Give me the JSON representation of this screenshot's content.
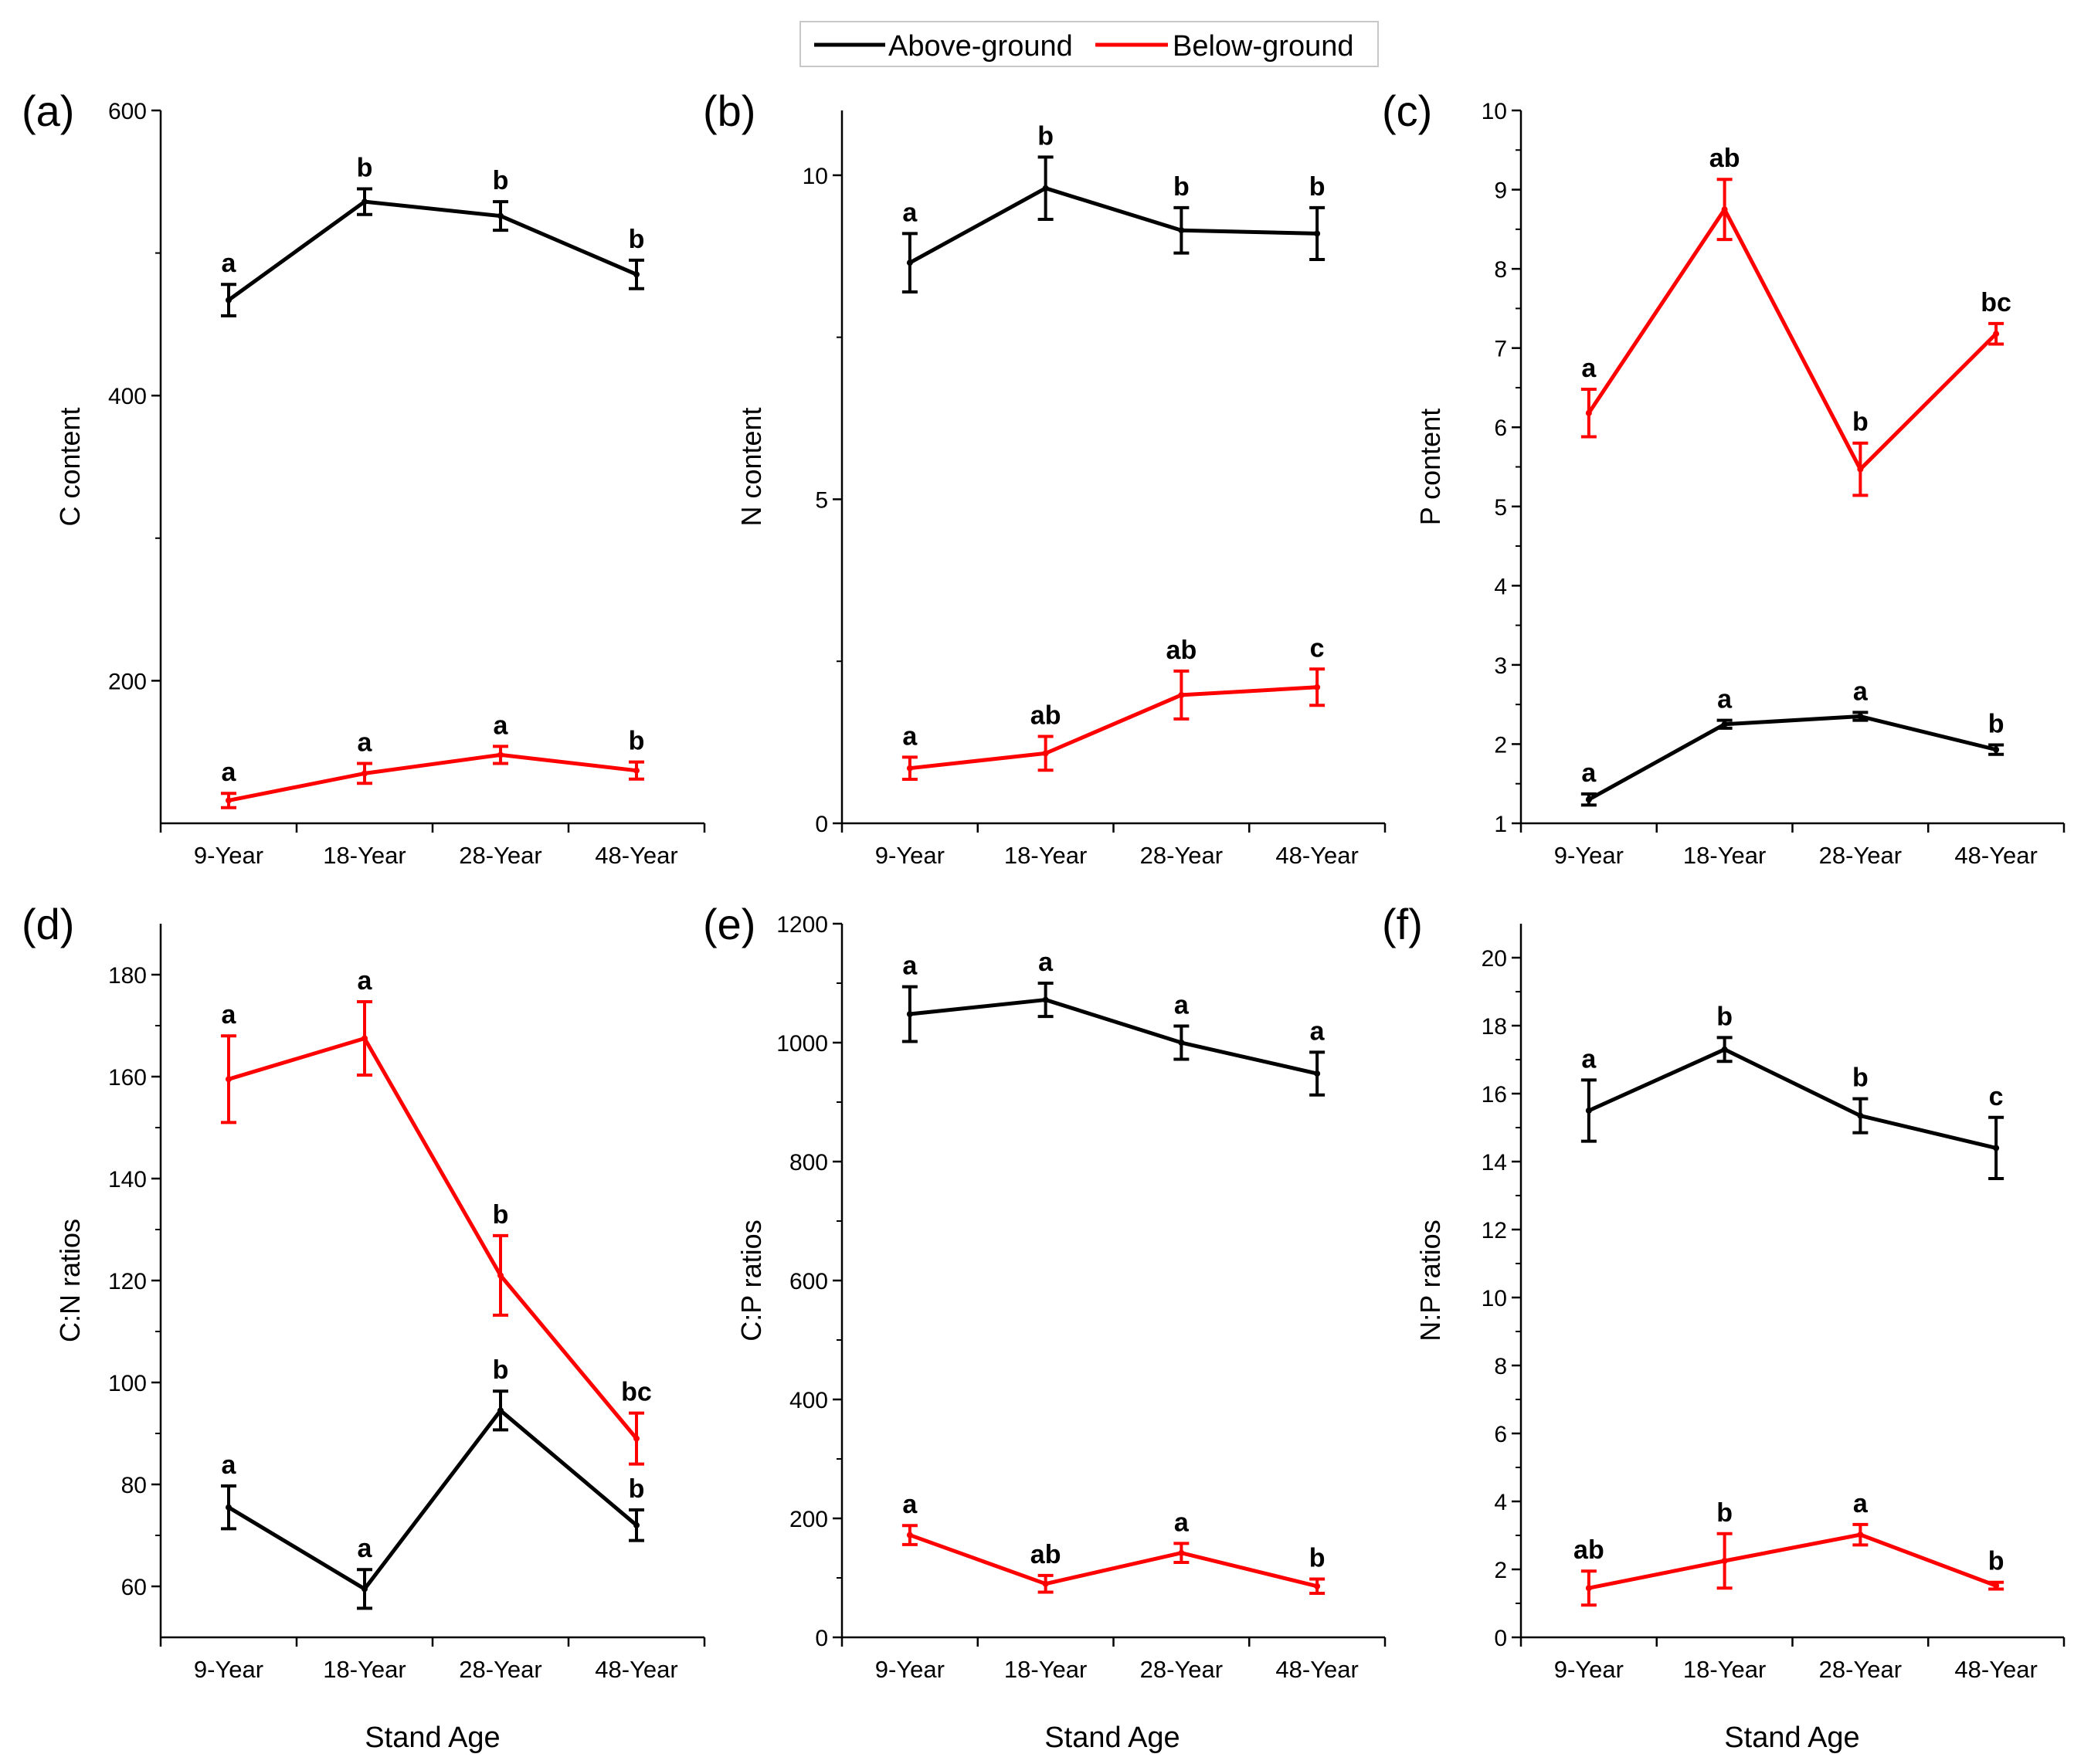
{
  "legend": {
    "above_label": "Above-ground",
    "below_label": "Below-ground",
    "above_color": "#000000",
    "below_color": "#ff0000"
  },
  "xlabel": "Stand Age",
  "chart_data": [
    {
      "type": "line",
      "panel": "(a)",
      "ylabel": "C content",
      "categories": [
        "9-Year",
        "18-Year",
        "28-Year",
        "48-Year"
      ],
      "ylim": [
        100,
        600
      ],
      "yticks": [
        200,
        400,
        600
      ],
      "ytick_labels": [
        "200",
        "400",
        "600"
      ],
      "series": [
        {
          "name": "Above-ground",
          "values": [
            467,
            536,
            526,
            485
          ],
          "errors": [
            11,
            9,
            10,
            10
          ],
          "labels": [
            "a",
            "b",
            "b",
            "b"
          ]
        },
        {
          "name": "Below-ground",
          "values": [
            116,
            135,
            148,
            137
          ],
          "errors": [
            5,
            7,
            6,
            6
          ],
          "labels": [
            "a",
            "a",
            "a",
            "b"
          ]
        }
      ]
    },
    {
      "type": "line",
      "panel": "(b)",
      "ylabel": "N content",
      "categories": [
        "9-Year",
        "18-Year",
        "28-Year",
        "48-Year"
      ],
      "ylim": [
        0,
        11
      ],
      "yticks": [
        0,
        5,
        10
      ],
      "ytick_labels": [
        "0",
        "5",
        "10"
      ],
      "series": [
        {
          "name": "Above-ground",
          "values": [
            8.65,
            9.8,
            9.15,
            9.1
          ],
          "errors": [
            0.45,
            0.48,
            0.35,
            0.4
          ],
          "labels": [
            "a",
            "b",
            "b",
            "b"
          ]
        },
        {
          "name": "Below-ground",
          "values": [
            0.85,
            1.08,
            1.98,
            2.1
          ],
          "errors": [
            0.17,
            0.26,
            0.37,
            0.28
          ],
          "labels": [
            "a",
            "ab",
            "ab",
            "c"
          ]
        }
      ]
    },
    {
      "type": "line",
      "panel": "(c)",
      "ylabel": "P content",
      "categories": [
        "9-Year",
        "18-Year",
        "28-Year",
        "48-Year"
      ],
      "ylim": [
        1,
        10
      ],
      "yticks": [
        1,
        2,
        3,
        4,
        5,
        6,
        7,
        8,
        9,
        10
      ],
      "ytick_labels": [
        "1",
        "2",
        "3",
        "4",
        "5",
        "6",
        "7",
        "8",
        "9",
        "10"
      ],
      "series": [
        {
          "name": "Above-ground",
          "values": [
            1.3,
            2.25,
            2.35,
            1.93
          ],
          "errors": [
            0.07,
            0.05,
            0.05,
            0.06
          ],
          "labels": [
            "a",
            "a",
            "a",
            "b"
          ]
        },
        {
          "name": "Below-ground",
          "values": [
            6.18,
            8.75,
            5.47,
            7.18
          ],
          "errors": [
            0.3,
            0.38,
            0.33,
            0.13
          ],
          "labels": [
            "a",
            "ab",
            "b",
            "bc"
          ]
        }
      ]
    },
    {
      "type": "line",
      "panel": "(d)",
      "ylabel": "C:N ratios",
      "categories": [
        "9-Year",
        "18-Year",
        "28-Year",
        "48-Year"
      ],
      "ylim": [
        50,
        190
      ],
      "yticks": [
        60,
        80,
        100,
        120,
        140,
        160,
        180
      ],
      "ytick_labels": [
        "60",
        "80",
        "100",
        "120",
        "140",
        "160",
        "180"
      ],
      "series": [
        {
          "name": "Above-ground",
          "values": [
            75.5,
            59.5,
            94.5,
            72
          ],
          "errors": [
            4.2,
            3.8,
            3.8,
            3
          ],
          "labels": [
            "a",
            "a",
            "b",
            "b"
          ]
        },
        {
          "name": "Below-ground",
          "values": [
            159.5,
            167.5,
            121,
            89
          ],
          "errors": [
            8.5,
            7.2,
            7.8,
            5
          ],
          "labels": [
            "a",
            "a",
            "b",
            "bc"
          ]
        }
      ]
    },
    {
      "type": "line",
      "panel": "(e)",
      "ylabel": "C:P ratios",
      "categories": [
        "9-Year",
        "18-Year",
        "28-Year",
        "48-Year"
      ],
      "ylim": [
        0,
        1200
      ],
      "yticks": [
        0,
        200,
        400,
        600,
        800,
        1000,
        1200
      ],
      "ytick_labels": [
        "0",
        "200",
        "400",
        "600",
        "800",
        "1000",
        "1200"
      ],
      "series": [
        {
          "name": "Above-ground",
          "values": [
            1048,
            1072,
            1000,
            948
          ],
          "errors": [
            46,
            28,
            28,
            36
          ],
          "labels": [
            "a",
            "a",
            "a",
            "a"
          ]
        },
        {
          "name": "Below-ground",
          "values": [
            172,
            90,
            142,
            86
          ],
          "errors": [
            16,
            14,
            16,
            12
          ],
          "labels": [
            "a",
            "ab",
            "a",
            "b"
          ]
        }
      ]
    },
    {
      "type": "line",
      "panel": "(f)",
      "ylabel": "N:P ratios",
      "categories": [
        "9-Year",
        "18-Year",
        "28-Year",
        "48-Year"
      ],
      "ylim": [
        0,
        21
      ],
      "yticks": [
        0,
        2,
        4,
        6,
        8,
        10,
        12,
        14,
        16,
        18,
        20
      ],
      "ytick_labels": [
        "0",
        "2",
        "4",
        "6",
        "8",
        "10",
        "12",
        "14",
        "16",
        "18",
        "20"
      ],
      "series": [
        {
          "name": "Above-ground",
          "values": [
            15.5,
            17.3,
            15.35,
            14.4
          ],
          "errors": [
            0.9,
            0.35,
            0.5,
            0.9
          ],
          "labels": [
            "a",
            "b",
            "b",
            "c"
          ]
        },
        {
          "name": "Below-ground",
          "values": [
            1.45,
            2.25,
            3.02,
            1.52
          ],
          "errors": [
            0.5,
            0.8,
            0.3,
            0.1
          ],
          "labels": [
            "ab",
            "b",
            "a",
            "b"
          ]
        }
      ]
    }
  ]
}
